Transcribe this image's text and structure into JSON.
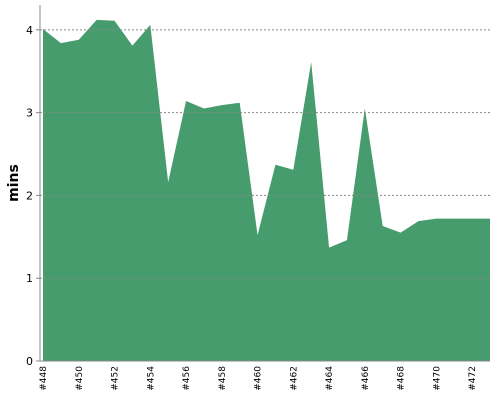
{
  "chart_data": {
    "type": "area",
    "y_label": "mins",
    "categories": [
      "#448",
      null,
      "#450",
      null,
      "#452",
      null,
      "#454",
      null,
      "#456",
      null,
      "#458",
      null,
      "#460",
      null,
      "#462",
      null,
      "#464",
      null,
      "#466",
      null,
      "#468",
      null,
      "#470",
      null,
      "#472",
      null
    ],
    "values": [
      4.01,
      3.84,
      3.88,
      4.12,
      4.11,
      3.81,
      4.06,
      2.16,
      3.14,
      3.05,
      3.09,
      3.12,
      1.52,
      2.37,
      2.31,
      3.61,
      1.37,
      1.46,
      3.05,
      1.63,
      1.55,
      1.69,
      1.72,
      1.72,
      1.72,
      1.72
    ],
    "color": "#469c6c",
    "ylim": [
      0,
      4.3
    ],
    "yticks": [
      0,
      1,
      2,
      3,
      4
    ],
    "grid": true
  }
}
